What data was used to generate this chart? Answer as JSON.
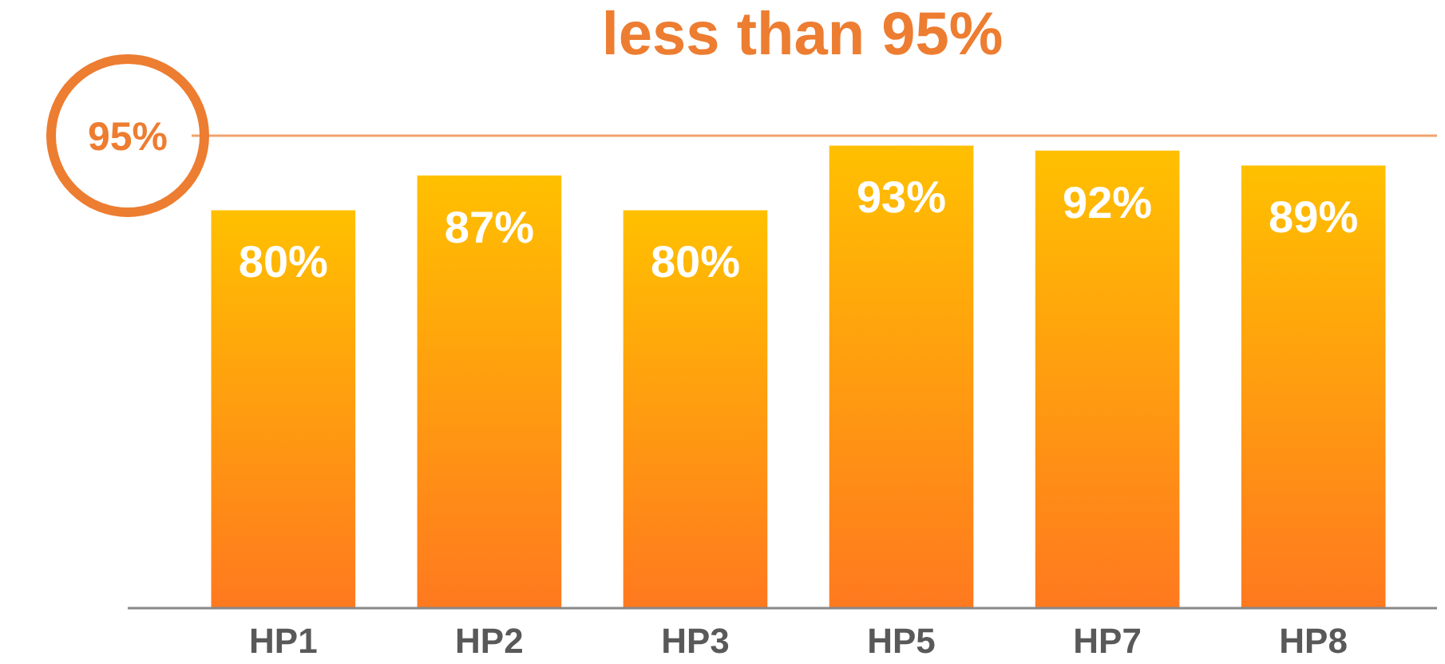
{
  "chart_data": {
    "type": "bar",
    "title": "less than 95%",
    "categories": [
      "HP1",
      "HP2",
      "HP3",
      "HP5",
      "HP7",
      "HP8"
    ],
    "values": [
      80,
      87,
      80,
      93,
      92,
      89
    ],
    "value_labels": [
      "80%",
      "87%",
      "80%",
      "93%",
      "92%",
      "89%"
    ],
    "color": "#ffc000",
    "ref_lines": [
      {
        "axis": "y",
        "value": 95,
        "label": "95%",
        "color": "#ed7d31"
      }
    ]
  }
}
